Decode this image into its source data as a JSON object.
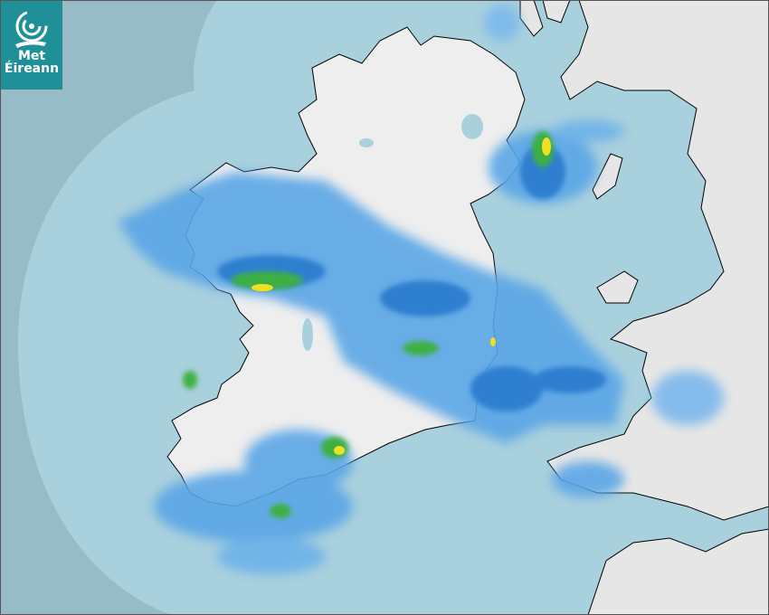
{
  "logo": {
    "line1": "Met",
    "line2": "Éireann",
    "color": "#1f8f98"
  },
  "map": {
    "type": "weather-radar",
    "colors": {
      "outside_range": "#97bcc8",
      "sea": "#a9d0dd",
      "land": "#eeeeee",
      "rain_light": "#5aa6e6",
      "rain_moderate": "#2f7fd0",
      "rain_heavy": "#3cb043",
      "rain_intense": "#f0e020"
    }
  }
}
